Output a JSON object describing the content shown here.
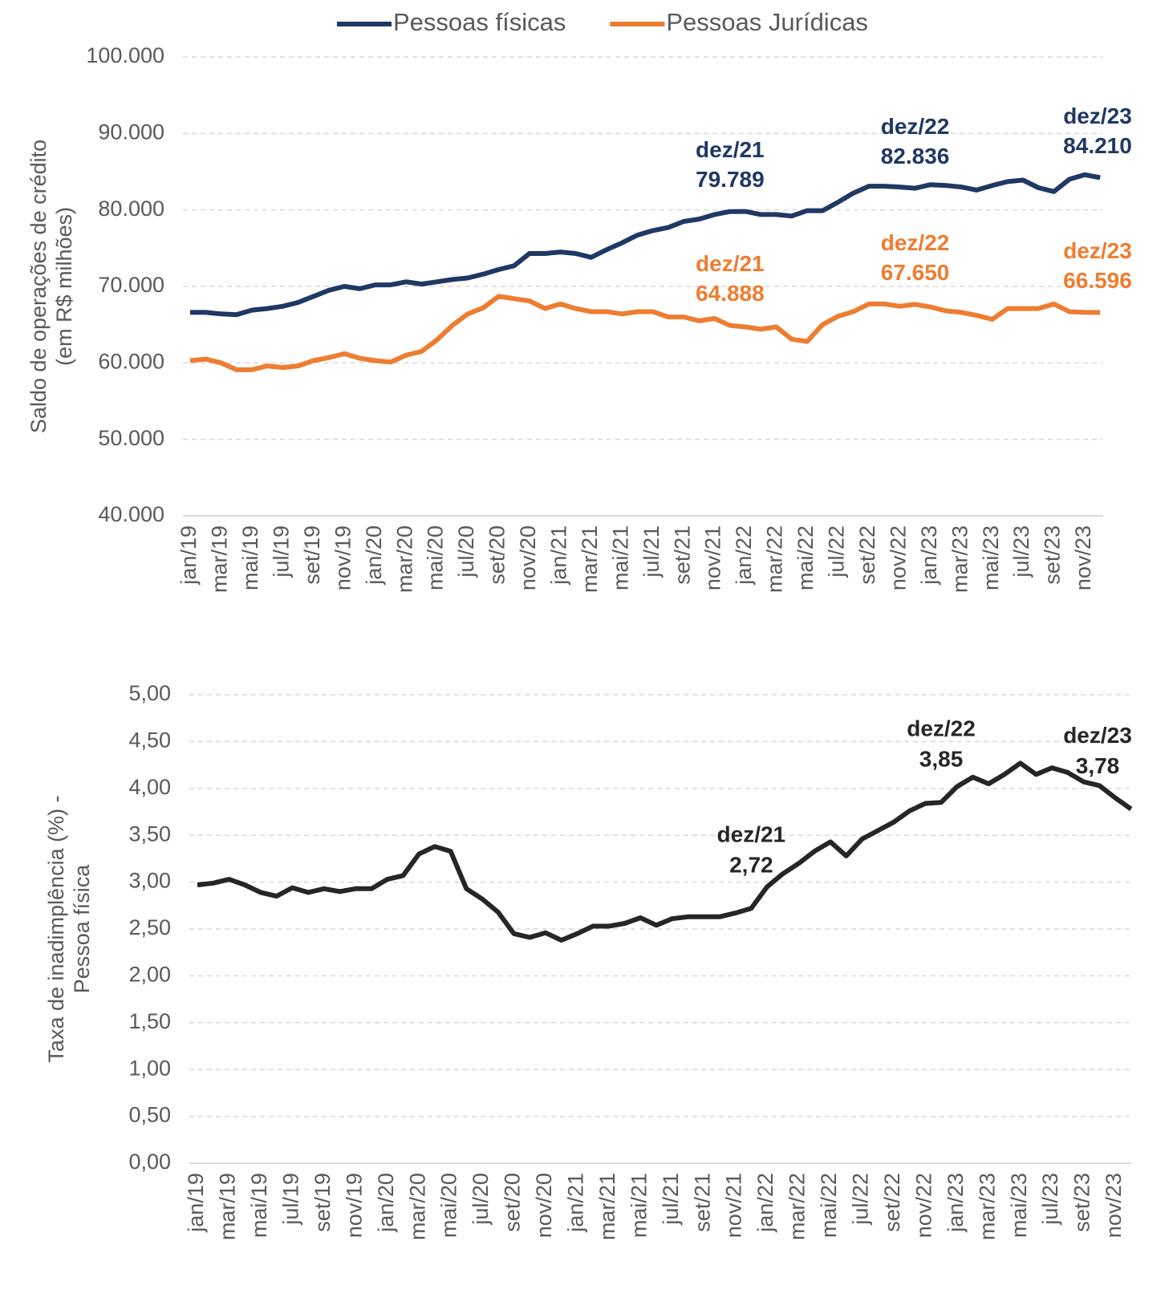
{
  "chart_data": [
    {
      "type": "line",
      "y_axis_label": [
        "Saldo de operações de crédito",
        "(em R$ milhões)"
      ],
      "categories": [
        "jan/19",
        null,
        "mar/19",
        null,
        "mai/19",
        null,
        "jul/19",
        null,
        "set/19",
        null,
        "nov/19",
        null,
        "jan/20",
        null,
        "mar/20",
        null,
        "mai/20",
        null,
        "jul/20",
        null,
        "set/20",
        null,
        "nov/20",
        null,
        "jan/21",
        null,
        "mar/21",
        null,
        "mai/21",
        null,
        "jul/21",
        null,
        "set/21",
        null,
        "nov/21",
        null,
        "jan/22",
        null,
        "mar/22",
        null,
        "mai/22",
        null,
        "jul/22",
        null,
        "set/22",
        null,
        "nov/22",
        null,
        "jan/23",
        null,
        "mar/23",
        null,
        "mai/23",
        null,
        "jul/23",
        null,
        "set/23",
        null,
        "nov/23",
        null
      ],
      "point_names": [
        null,
        null,
        null,
        null,
        null,
        null,
        null,
        null,
        null,
        null,
        null,
        null,
        null,
        null,
        null,
        null,
        null,
        null,
        null,
        null,
        null,
        null,
        null,
        null,
        null,
        null,
        null,
        null,
        null,
        null,
        null,
        null,
        null,
        null,
        null,
        "dez/21",
        null,
        null,
        null,
        null,
        null,
        null,
        null,
        null,
        null,
        null,
        null,
        "dez/22",
        null,
        null,
        null,
        null,
        null,
        null,
        null,
        null,
        null,
        null,
        null,
        "dez/23"
      ],
      "series": [
        {
          "name": "Pessoas físicas",
          "color": "#1f3864",
          "values": [
            66600,
            66600,
            66400,
            66300,
            66900,
            67100,
            67400,
            67900,
            68700,
            69500,
            70000,
            69700,
            70200,
            70200,
            70600,
            70300,
            70600,
            70900,
            71100,
            71600,
            72200,
            72700,
            74300,
            74300,
            74500,
            74300,
            73800,
            74800,
            75700,
            76700,
            77300,
            77700,
            78500,
            78800,
            79400,
            79789,
            79800,
            79400,
            79400,
            79200,
            79900,
            79900,
            81000,
            82200,
            83100,
            83100,
            83000,
            82836,
            83300,
            83200,
            83000,
            82600,
            83200,
            83700,
            83900,
            82900,
            82400,
            84000,
            84600,
            84210
          ],
          "value_labels": [
            null,
            null,
            null,
            null,
            null,
            null,
            null,
            null,
            null,
            null,
            null,
            null,
            null,
            null,
            null,
            null,
            null,
            null,
            null,
            null,
            null,
            null,
            null,
            null,
            null,
            null,
            null,
            null,
            null,
            null,
            null,
            null,
            null,
            null,
            null,
            "79.789",
            null,
            null,
            null,
            null,
            null,
            null,
            null,
            null,
            null,
            null,
            null,
            "82.836",
            null,
            null,
            null,
            null,
            null,
            null,
            null,
            null,
            null,
            null,
            null,
            "84.210"
          ]
        },
        {
          "name": "Pessoas Jurídicas",
          "color": "#ed7d31",
          "values": [
            60300,
            60500,
            60000,
            59100,
            59100,
            59600,
            59400,
            59600,
            60300,
            60700,
            61200,
            60600,
            60300,
            60100,
            61000,
            61500,
            63000,
            64900,
            66400,
            67200,
            68700,
            68400,
            68100,
            67100,
            67700,
            67100,
            66700,
            66700,
            66400,
            66700,
            66700,
            66000,
            66000,
            65500,
            65800,
            64888,
            64700,
            64400,
            64700,
            63100,
            62800,
            65000,
            66100,
            66700,
            67700,
            67700,
            67400,
            67650,
            67300,
            66800,
            66600,
            66200,
            65700,
            67100,
            67100,
            67100,
            67700,
            66700,
            66600,
            66596
          ],
          "value_labels": [
            null,
            null,
            null,
            null,
            null,
            null,
            null,
            null,
            null,
            null,
            null,
            null,
            null,
            null,
            null,
            null,
            null,
            null,
            null,
            null,
            null,
            null,
            null,
            null,
            null,
            null,
            null,
            null,
            null,
            null,
            null,
            null,
            null,
            null,
            null,
            "64.888",
            null,
            null,
            null,
            null,
            null,
            null,
            null,
            null,
            null,
            null,
            null,
            "67.650",
            null,
            null,
            null,
            null,
            null,
            null,
            null,
            null,
            null,
            null,
            null,
            "66.596"
          ]
        }
      ],
      "ylim": [
        40000,
        100000
      ],
      "yticks": [
        {
          "value": 40000,
          "label": "40.000"
        },
        {
          "value": 50000,
          "label": "50.000"
        },
        {
          "value": 60000,
          "label": "60.000"
        },
        {
          "value": 70000,
          "label": "70.000"
        },
        {
          "value": 80000,
          "label": "80.000"
        },
        {
          "value": 90000,
          "label": "90.000"
        },
        {
          "value": 100000,
          "label": "100.000"
        }
      ],
      "grid": true,
      "legend": "top"
    },
    {
      "type": "line",
      "y_axis_label": [
        "Taxa de inadimplência (%) -",
        "Pessoa física"
      ],
      "categories": [
        "jan/19",
        null,
        "mar/19",
        null,
        "mai/19",
        null,
        "jul/19",
        null,
        "set/19",
        null,
        "nov/19",
        null,
        "jan/20",
        null,
        "mar/20",
        null,
        "mai/20",
        null,
        "jul/20",
        null,
        "set/20",
        null,
        "nov/20",
        null,
        "jan/21",
        null,
        "mar/21",
        null,
        "mai/21",
        null,
        "jul/21",
        null,
        "set/21",
        null,
        "nov/21",
        null,
        "jan/22",
        null,
        "mar/22",
        null,
        "mai/22",
        null,
        "jul/22",
        null,
        "set/22",
        null,
        "nov/22",
        null,
        "jan/23",
        null,
        "mar/23",
        null,
        "mai/23",
        null,
        "jul/23",
        null,
        "set/23",
        null,
        "nov/23",
        null
      ],
      "point_names": [
        null,
        null,
        null,
        null,
        null,
        null,
        null,
        null,
        null,
        null,
        null,
        null,
        null,
        null,
        null,
        null,
        null,
        null,
        null,
        null,
        null,
        null,
        null,
        null,
        null,
        null,
        null,
        null,
        null,
        null,
        null,
        null,
        null,
        null,
        null,
        "dez/21",
        null,
        null,
        null,
        null,
        null,
        null,
        null,
        null,
        null,
        null,
        null,
        "dez/22",
        null,
        null,
        null,
        null,
        null,
        null,
        null,
        null,
        null,
        null,
        null,
        "dez/23"
      ],
      "series": [
        {
          "color": "#262626",
          "values": [
            2.97,
            2.99,
            3.03,
            2.97,
            2.89,
            2.85,
            2.94,
            2.89,
            2.93,
            2.9,
            2.93,
            2.93,
            3.03,
            3.07,
            3.3,
            3.38,
            3.33,
            2.93,
            2.82,
            2.68,
            2.45,
            2.41,
            2.46,
            2.38,
            2.45,
            2.53,
            2.53,
            2.56,
            2.62,
            2.54,
            2.61,
            2.63,
            2.63,
            2.63,
            2.67,
            2.72,
            2.95,
            3.09,
            3.2,
            3.33,
            3.43,
            3.28,
            3.46,
            3.55,
            3.64,
            3.76,
            3.84,
            3.85,
            4.02,
            4.12,
            4.05,
            4.15,
            4.27,
            4.15,
            4.22,
            4.17,
            4.07,
            4.03,
            3.9,
            3.78
          ],
          "value_labels": [
            null,
            null,
            null,
            null,
            null,
            null,
            null,
            null,
            null,
            null,
            null,
            null,
            null,
            null,
            null,
            null,
            null,
            null,
            null,
            null,
            null,
            null,
            null,
            null,
            null,
            null,
            null,
            null,
            null,
            null,
            null,
            null,
            null,
            null,
            null,
            "2,72",
            null,
            null,
            null,
            null,
            null,
            null,
            null,
            null,
            null,
            null,
            null,
            "3,85",
            null,
            null,
            null,
            null,
            null,
            null,
            null,
            null,
            null,
            null,
            null,
            "3,78"
          ]
        }
      ],
      "ylim": [
        0,
        5
      ],
      "yticks": [
        {
          "value": 0,
          "label": "0,00"
        },
        {
          "value": 0.5,
          "label": "0,50"
        },
        {
          "value": 1,
          "label": "1,00"
        },
        {
          "value": 1.5,
          "label": "1,50"
        },
        {
          "value": 2,
          "label": "2,00"
        },
        {
          "value": 2.5,
          "label": "2,50"
        },
        {
          "value": 3,
          "label": "3,00"
        },
        {
          "value": 3.5,
          "label": "3,50"
        },
        {
          "value": 4,
          "label": "4,00"
        },
        {
          "value": 4.5,
          "label": "4,50"
        },
        {
          "value": 5,
          "label": "5,00"
        }
      ],
      "grid": true
    }
  ]
}
